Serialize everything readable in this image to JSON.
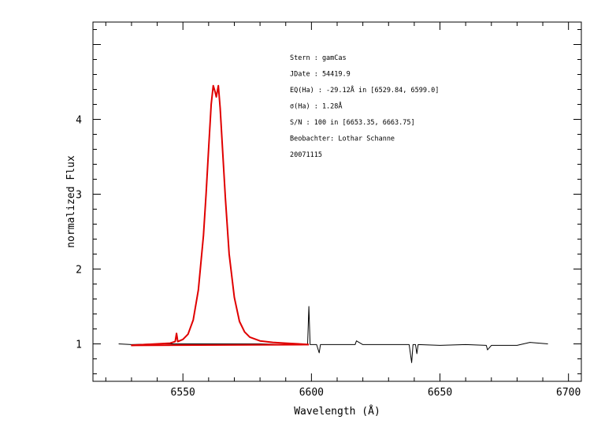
{
  "chart_data": {
    "type": "line",
    "xlabel": "Wavelength (Å)",
    "ylabel": "normalized Flux",
    "xlim": [
      6515,
      6705
    ],
    "ylim": [
      0.5,
      5.3
    ],
    "x_ticks": [
      6550,
      6600,
      6650,
      6700
    ],
    "y_ticks": [
      1,
      2,
      3,
      4
    ],
    "grid": false,
    "annotation_lines": [
      "Stern    : gamCas",
      "JDate    : 54419.9",
      "EQ(Ha) : -29.12Å in [6529.84, 6599.0]",
      "σ(Ha)    : 1.28Å",
      "S/N       : 100 in [6653.35, 6663.75]",
      "Beobachter: Lothar Schanne",
      "20071115"
    ],
    "series": [
      {
        "color": "#000000",
        "x": [
          6525,
          6530,
          6540,
          6550,
          6560,
          6570,
          6580,
          6590,
          6598.5,
          6599.0,
          6599.5,
          6602,
          6603,
          6603.5,
          6610,
          6617,
          6617.5,
          6620,
          6630,
          6638,
          6639,
          6639.5,
          6640.5,
          6641,
          6641.5,
          6650,
          6660,
          6668,
          6668.5,
          6670,
          6680,
          6685,
          6692
        ],
        "y": [
          1.0,
          0.99,
          1.0,
          1.0,
          1.0,
          1.0,
          1.0,
          0.99,
          0.99,
          1.5,
          0.99,
          0.99,
          0.88,
          0.99,
          0.99,
          0.99,
          1.04,
          0.99,
          0.99,
          0.99,
          0.75,
          0.99,
          0.99,
          0.87,
          0.99,
          0.98,
          0.99,
          0.98,
          0.92,
          0.98,
          0.98,
          1.02,
          1.0
        ]
      },
      {
        "color": "#e00000",
        "x": [
          6529.84,
          6535,
          6540,
          6545,
          6547,
          6547.5,
          6548,
          6550,
          6552,
          6554,
          6556,
          6558,
          6559,
          6560,
          6561,
          6561.8,
          6562.5,
          6563,
          6563.8,
          6564.5,
          6565.5,
          6566.5,
          6568,
          6570,
          6572,
          6574,
          6576,
          6580,
          6585,
          6590,
          6595,
          6599.0
        ],
        "y": [
          0.98,
          0.99,
          1.0,
          1.01,
          1.03,
          1.14,
          1.03,
          1.06,
          1.13,
          1.32,
          1.72,
          2.45,
          3.0,
          3.6,
          4.2,
          4.45,
          4.37,
          4.3,
          4.45,
          4.15,
          3.55,
          2.95,
          2.2,
          1.62,
          1.3,
          1.16,
          1.09,
          1.04,
          1.02,
          1.01,
          1.0,
          0.99
        ]
      },
      {
        "color": "#e00000",
        "x": [
          6529.84,
          6599.0
        ],
        "y": [
          0.98,
          0.99
        ]
      }
    ]
  }
}
